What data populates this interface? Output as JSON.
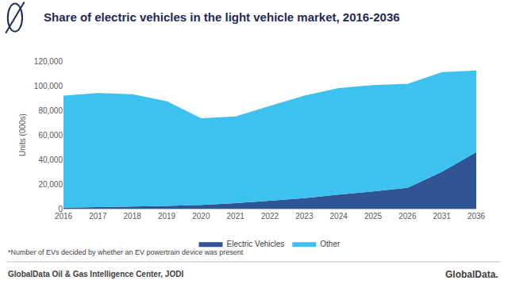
{
  "chart_data": {
    "type": "area",
    "title": "Share of electric vehicles in the light vehicle market, 2016-2036",
    "y_label": "Units (000s)",
    "categories": [
      "2016",
      "2017",
      "2018",
      "2019",
      "2020",
      "2021",
      "2022",
      "2023",
      "2024",
      "2025",
      "2026",
      "2031",
      "2036"
    ],
    "series": [
      {
        "name": "Electric Vehicles",
        "color": "#2f5597",
        "values": [
          800,
          1200,
          2000,
          2200,
          3000,
          4500,
          6500,
          8500,
          11500,
          14000,
          17000,
          30000,
          46000
        ]
      },
      {
        "name": "Other",
        "color": "#3dc2f0",
        "values": [
          91200,
          92800,
          91000,
          85300,
          70500,
          70500,
          77000,
          83500,
          86500,
          86500,
          84500,
          81000,
          66500
        ]
      }
    ],
    "ylim": [
      0,
      120000
    ],
    "yticks": [
      0,
      {
        "value": 20000,
        "label": "20,000"
      },
      {
        "value": 40000,
        "label": "40,000"
      },
      {
        "value": 60000,
        "label": "60,000"
      },
      {
        "value": 80000,
        "label": "80,000"
      },
      {
        "value": 100000,
        "label": "100,000"
      },
      {
        "value": 120000,
        "label": "120,000"
      }
    ],
    "stacked": true,
    "grid": false,
    "legend": "bottom",
    "note": "*Number of EVs decided by whether an EV powertrain device was present",
    "source": "GlobalData Oil & Gas Intelligence Center, JODI",
    "logo": "GlobalData."
  }
}
